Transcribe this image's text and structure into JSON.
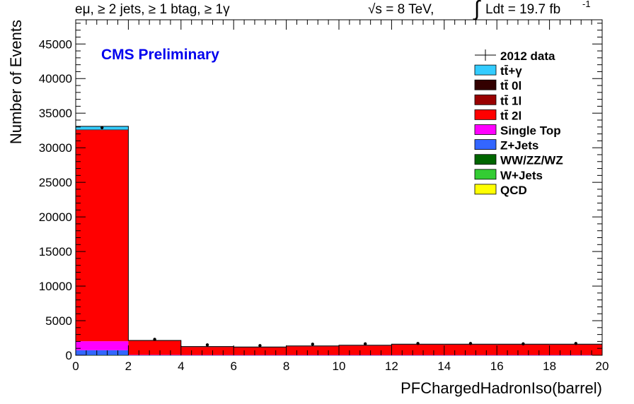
{
  "header": {
    "selection": "eμ, ≥ 2 jets, ≥ 1 btag, ≥ 1γ",
    "energy": "√s = 8 TeV,",
    "lumi_label": "Ldt = 19.7 fb",
    "lumi_exp": "-1"
  },
  "chart_data": {
    "type": "bar",
    "title": "CMS Preliminary",
    "xlabel": "PFChargedHadronIso(barrel)",
    "ylabel": "Number of Events",
    "xlim": [
      0,
      20
    ],
    "ylim": [
      0,
      48500
    ],
    "xticks": [
      0,
      2,
      4,
      6,
      8,
      10,
      12,
      14,
      16,
      18,
      20
    ],
    "yticks": [
      0,
      5000,
      10000,
      15000,
      20000,
      25000,
      30000,
      35000,
      40000,
      45000
    ],
    "bin_edges": [
      0,
      2,
      4,
      6,
      8,
      10,
      12,
      14,
      16,
      18,
      20
    ],
    "stacked_series": [
      {
        "name": "QCD",
        "color": "#ffff00",
        "values": [
          0,
          0,
          0,
          0,
          0,
          0,
          0,
          0,
          0,
          0
        ]
      },
      {
        "name": "W+Jets",
        "color": "#33cc33",
        "values": [
          0,
          0,
          0,
          0,
          0,
          0,
          0,
          0,
          0,
          0
        ]
      },
      {
        "name": "WW/ZZ/WZ",
        "color": "#006600",
        "values": [
          30,
          5,
          5,
          5,
          5,
          5,
          5,
          5,
          5,
          5
        ]
      },
      {
        "name": "Z+Jets",
        "color": "#3366ff",
        "values": [
          700,
          15,
          10,
          10,
          10,
          10,
          10,
          10,
          10,
          10
        ]
      },
      {
        "name": "Single Top",
        "color": "#ff00ff",
        "values": [
          1300,
          40,
          25,
          20,
          20,
          20,
          20,
          20,
          20,
          20
        ]
      },
      {
        "name": "tt̄ 2l",
        "color": "#ff0000",
        "values": [
          30500,
          2050,
          1200,
          1150,
          1300,
          1400,
          1550,
          1550,
          1550,
          1550
        ]
      },
      {
        "name": "tt̄ 1l",
        "color": "#990000",
        "values": [
          80,
          10,
          5,
          5,
          5,
          5,
          5,
          5,
          5,
          5
        ]
      },
      {
        "name": "tt̄ 0l",
        "color": "#330000",
        "values": [
          10,
          0,
          0,
          0,
          0,
          0,
          0,
          0,
          0,
          0
        ]
      },
      {
        "name": "tt̄+γ",
        "color": "#33ccff",
        "values": [
          480,
          30,
          15,
          15,
          15,
          15,
          15,
          15,
          15,
          15
        ]
      }
    ],
    "data_series": {
      "name": "2012 data",
      "x": [
        1,
        3,
        5,
        7,
        9,
        11,
        13,
        15,
        17,
        19
      ],
      "y": [
        32900,
        2300,
        1500,
        1400,
        1600,
        1650,
        1700,
        1700,
        1650,
        1700
      ]
    },
    "legend": {
      "placement": "top-right",
      "entries": [
        "2012 data",
        "tt̄+γ",
        "tt̄ 0l",
        "tt̄ 1l",
        "tt̄ 2l",
        "Single Top",
        "Z+Jets",
        "WW/ZZ/WZ",
        "W+Jets",
        "QCD"
      ]
    },
    "colors": {
      "title": "#0000ee",
      "axis": "#000000"
    }
  }
}
